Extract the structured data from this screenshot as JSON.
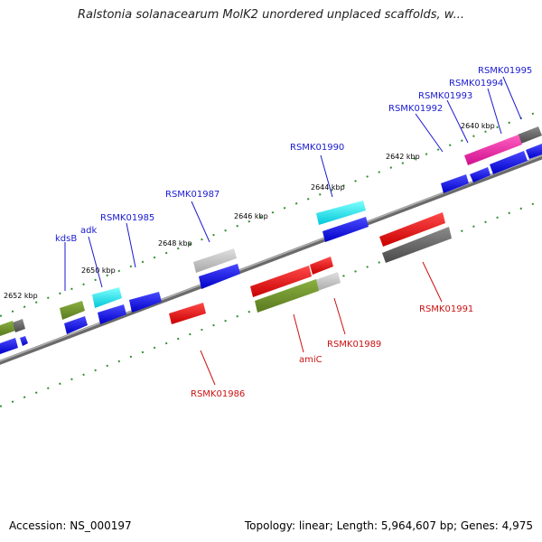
{
  "title": "Ralstonia solanacearum MolK2 unordered unplaced scaffolds, w...",
  "footer": {
    "accession": "Accession: NS_000197",
    "summary": "Topology: linear; Length: 5,964,607 bp; Genes: 4,975"
  },
  "colors": {
    "forward_label": "#1a1ad0",
    "reverse_label": "#cc1111",
    "tick": "#2f8f2f",
    "backbone": "#808080"
  },
  "kbp_labels": [
    "2640 kbp",
    "2642 kbp",
    "2644 kbp",
    "2646 kbp",
    "2648 kbp",
    "2650 kbp",
    "2652 kbp"
  ],
  "forward_gene_labels": [
    "RSMK01995",
    "RSMK01994",
    "RSMK01993",
    "RSMK01992",
    "RSMK01990",
    "RSMK01987",
    "RSMK01985",
    "adk",
    "kdsB"
  ],
  "reverse_gene_labels": [
    "RSMK01991",
    "RSMK01989",
    "amiC",
    "RSMK01986"
  ]
}
